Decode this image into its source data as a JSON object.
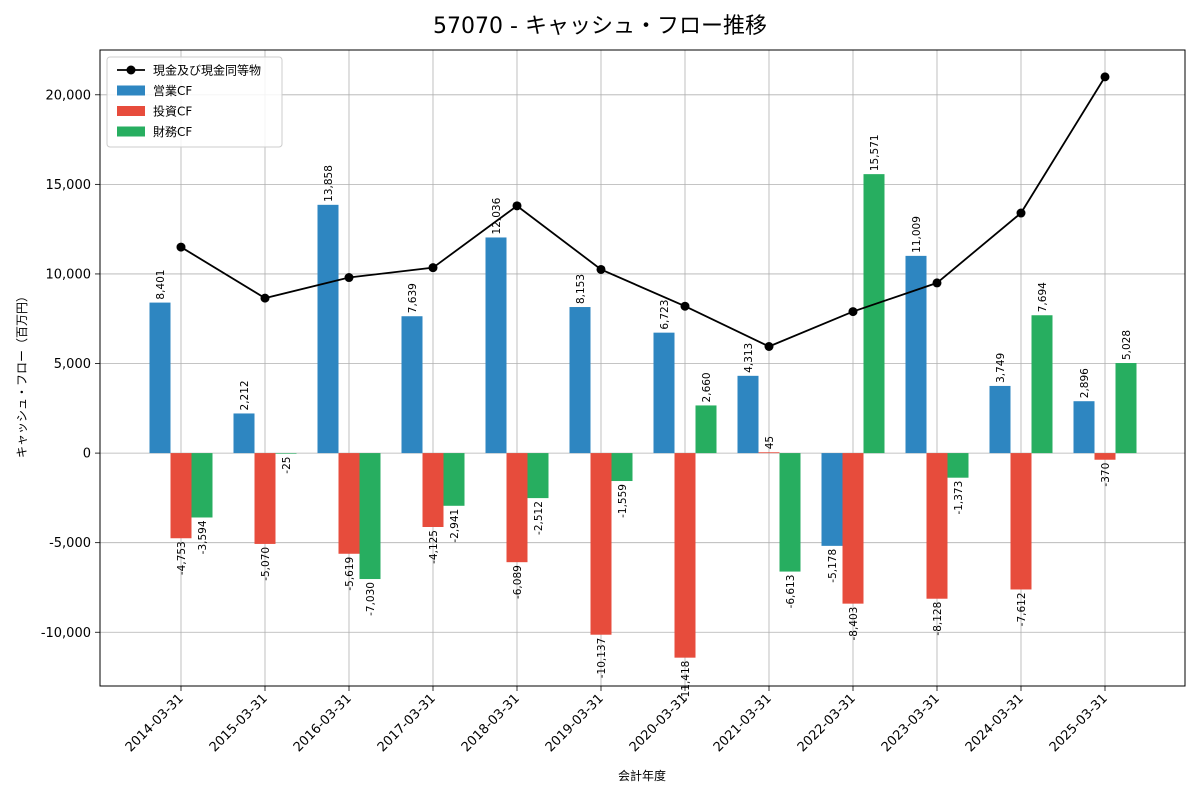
{
  "chart_data": {
    "type": "bar",
    "title": "57070 - キャッシュ・フロー推移",
    "xlabel": "会計年度",
    "ylabel": "キャッシュ・フロー（百万円）",
    "ylim": [
      -13000,
      22500
    ],
    "yticks": [
      -10000,
      -5000,
      0,
      5000,
      10000,
      15000,
      20000
    ],
    "ytick_labels": [
      "-10,000",
      "-5,000",
      "0",
      "5,000",
      "10,000",
      "15,000",
      "20,000"
    ],
    "grid": true,
    "legend_position": "top-left",
    "categories": [
      "2014-03-31",
      "2015-03-31",
      "2016-03-31",
      "2017-03-31",
      "2018-03-31",
      "2019-03-31",
      "2020-03-31",
      "2021-03-31",
      "2022-03-31",
      "2023-03-31",
      "2024-03-31",
      "2025-03-31"
    ],
    "series": [
      {
        "name": "営業CF",
        "kind": "bar",
        "color": "#2e86c1",
        "values": [
          8401,
          2212,
          13858,
          7639,
          12036,
          8153,
          6723,
          4313,
          -5178,
          11009,
          3749,
          2896
        ],
        "labels": [
          "8,401",
          "2,212",
          "13,858",
          "7,639",
          "12,036",
          "8,153",
          "6,723",
          "4,313",
          "-5,178",
          "11,009",
          "3,749",
          "2,896"
        ]
      },
      {
        "name": "投資CF",
        "kind": "bar",
        "color": "#e74c3c",
        "values": [
          -4753,
          -5070,
          -5619,
          -4125,
          -6089,
          -10137,
          -11418,
          45,
          -8403,
          -8128,
          -7612,
          -370
        ],
        "labels": [
          "-4,753",
          "-5,070",
          "-5,619",
          "-4,125",
          "-6,089",
          "-10,137",
          "-11,418",
          "45",
          "-8,403",
          "-8,128",
          "-7,612",
          "-370"
        ]
      },
      {
        "name": "財務CF",
        "kind": "bar",
        "color": "#27ae60",
        "values": [
          -3594,
          -25,
          -7030,
          -2941,
          -2512,
          -1559,
          2660,
          -6613,
          15571,
          -1373,
          7694,
          5028
        ],
        "labels": [
          "-3,594",
          "-25",
          "-7,030",
          "-2,941",
          "-2,512",
          "-1,559",
          "2,660",
          "-6,613",
          "15,571",
          "-1,373",
          "7,694",
          "5,028"
        ]
      },
      {
        "name": "現金及び現金同等物",
        "kind": "line",
        "color": "#000000",
        "values": [
          11500,
          8650,
          9800,
          10350,
          13800,
          10250,
          8200,
          5950,
          7900,
          9500,
          13400,
          21000
        ]
      }
    ]
  }
}
